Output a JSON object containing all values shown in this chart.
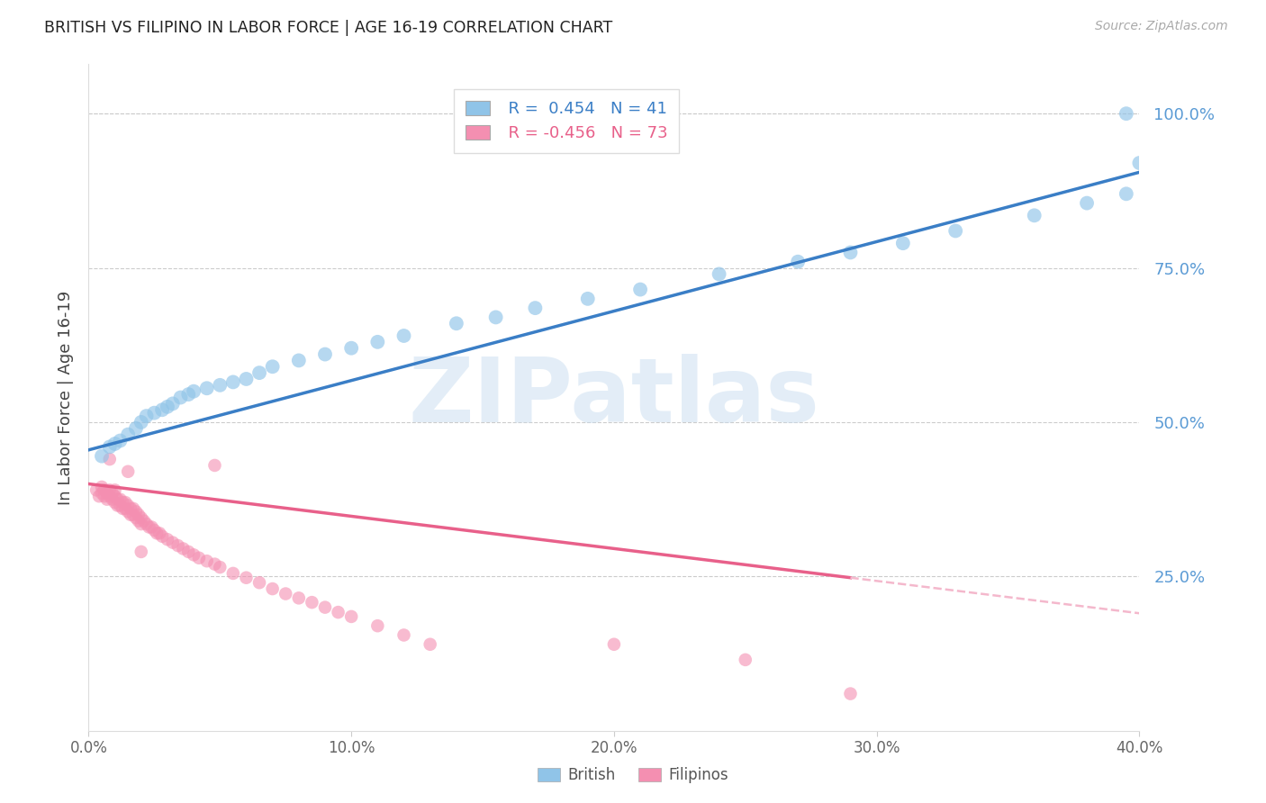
{
  "title": "BRITISH VS FILIPINO IN LABOR FORCE | AGE 16-19 CORRELATION CHART",
  "source": "Source: ZipAtlas.com",
  "ylabel": "In Labor Force | Age 16-19",
  "x_tick_labels": [
    "0.0%",
    "10.0%",
    "20.0%",
    "30.0%",
    "40.0%"
  ],
  "x_tick_vals": [
    0.0,
    0.1,
    0.2,
    0.3,
    0.4
  ],
  "y_tick_labels": [
    "25.0%",
    "50.0%",
    "75.0%",
    "100.0%"
  ],
  "y_tick_vals": [
    0.25,
    0.5,
    0.75,
    1.0
  ],
  "xlim": [
    0.0,
    0.4
  ],
  "ylim": [
    0.0,
    1.05
  ],
  "british_color": "#90c4e8",
  "filipino_color": "#f48fb1",
  "british_line_color": "#3a7ec6",
  "filipino_line_color": "#e8608a",
  "filipino_line_dashed_color": "#f4b8cc",
  "watermark": "ZIPatlas",
  "watermark_color": "#c8ddf0",
  "legend_british_label": "British",
  "legend_filipino_label": "Filipinos",
  "british_R": "0.454",
  "british_N": "41",
  "filipino_R": "-0.456",
  "filipino_N": "73",
  "british_x": [
    0.005,
    0.008,
    0.01,
    0.012,
    0.015,
    0.018,
    0.02,
    0.022,
    0.025,
    0.028,
    0.03,
    0.032,
    0.035,
    0.038,
    0.04,
    0.045,
    0.05,
    0.055,
    0.06,
    0.065,
    0.07,
    0.08,
    0.09,
    0.1,
    0.11,
    0.12,
    0.14,
    0.155,
    0.17,
    0.19,
    0.21,
    0.24,
    0.27,
    0.29,
    0.31,
    0.33,
    0.36,
    0.38,
    0.395,
    0.4,
    0.395
  ],
  "british_y": [
    0.445,
    0.46,
    0.465,
    0.47,
    0.48,
    0.49,
    0.5,
    0.51,
    0.515,
    0.52,
    0.525,
    0.53,
    0.54,
    0.545,
    0.55,
    0.555,
    0.56,
    0.565,
    0.57,
    0.58,
    0.59,
    0.6,
    0.61,
    0.62,
    0.63,
    0.64,
    0.66,
    0.67,
    0.685,
    0.7,
    0.715,
    0.74,
    0.76,
    0.775,
    0.79,
    0.81,
    0.835,
    0.855,
    0.87,
    0.92,
    1.0
  ],
  "filipino_x": [
    0.003,
    0.004,
    0.005,
    0.005,
    0.006,
    0.006,
    0.007,
    0.007,
    0.008,
    0.008,
    0.009,
    0.009,
    0.01,
    0.01,
    0.01,
    0.011,
    0.011,
    0.012,
    0.012,
    0.013,
    0.013,
    0.014,
    0.014,
    0.015,
    0.015,
    0.016,
    0.016,
    0.017,
    0.017,
    0.018,
    0.018,
    0.019,
    0.019,
    0.02,
    0.02,
    0.021,
    0.022,
    0.023,
    0.024,
    0.025,
    0.026,
    0.027,
    0.028,
    0.03,
    0.032,
    0.034,
    0.036,
    0.038,
    0.04,
    0.042,
    0.045,
    0.048,
    0.05,
    0.055,
    0.06,
    0.065,
    0.07,
    0.075,
    0.08,
    0.085,
    0.09,
    0.095,
    0.1,
    0.11,
    0.12,
    0.13,
    0.2,
    0.25,
    0.29,
    0.048,
    0.015,
    0.02,
    0.008
  ],
  "filipino_y": [
    0.39,
    0.38,
    0.385,
    0.395,
    0.39,
    0.38,
    0.385,
    0.375,
    0.39,
    0.38,
    0.375,
    0.385,
    0.39,
    0.38,
    0.37,
    0.375,
    0.365,
    0.375,
    0.365,
    0.37,
    0.36,
    0.37,
    0.36,
    0.365,
    0.355,
    0.36,
    0.35,
    0.36,
    0.35,
    0.355,
    0.345,
    0.35,
    0.34,
    0.345,
    0.335,
    0.34,
    0.335,
    0.33,
    0.33,
    0.325,
    0.32,
    0.32,
    0.315,
    0.31,
    0.305,
    0.3,
    0.295,
    0.29,
    0.285,
    0.28,
    0.275,
    0.27,
    0.265,
    0.255,
    0.248,
    0.24,
    0.23,
    0.222,
    0.215,
    0.208,
    0.2,
    0.192,
    0.185,
    0.17,
    0.155,
    0.14,
    0.14,
    0.115,
    0.06,
    0.43,
    0.42,
    0.29,
    0.44
  ]
}
